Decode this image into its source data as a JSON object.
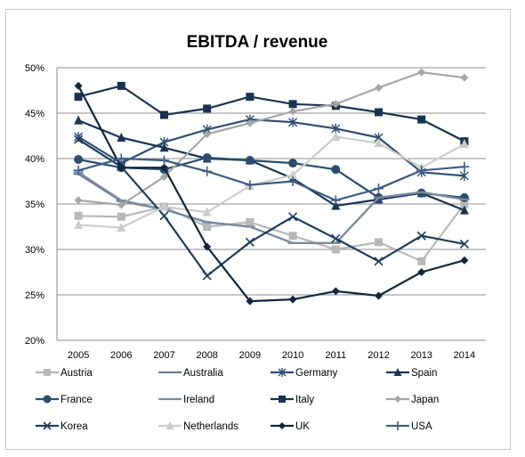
{
  "chart_data": {
    "type": "line",
    "title": "EBITDA / revenue",
    "xlabel": "",
    "ylabel": "",
    "x": [
      "2005",
      "2006",
      "2007",
      "2008",
      "2009",
      "2010",
      "2011",
      "2012",
      "2013",
      "2014"
    ],
    "ylim": [
      0.2,
      0.5
    ],
    "y_ticks": [
      0.2,
      0.25,
      0.3,
      0.35,
      0.4,
      0.45,
      0.5
    ],
    "y_tick_labels": [
      "20%",
      "25%",
      "30%",
      "35%",
      "40%",
      "45%",
      "50%"
    ],
    "grid": "horizontal",
    "legend_position": "bottom",
    "series": [
      {
        "name": "Austria",
        "color": "#b8b8b8",
        "marker": "square",
        "values": [
          0.337,
          0.336,
          0.347,
          0.325,
          0.33,
          0.315,
          0.3,
          0.308,
          0.287,
          0.35
        ]
      },
      {
        "name": "Australia",
        "color": "#6c7e96",
        "marker": "dash",
        "values": [
          0.383,
          0.353,
          0.344,
          0.33,
          0.325,
          0.307,
          0.307,
          0.357,
          0.363,
          0.355
        ]
      },
      {
        "name": "Germany",
        "color": "#2e4e74",
        "marker": "asterisk",
        "values": [
          0.424,
          0.395,
          0.418,
          0.432,
          0.443,
          0.44,
          0.433,
          0.423,
          0.385,
          0.381
        ]
      },
      {
        "name": "Spain",
        "color": "#1c3554",
        "marker": "triangle",
        "values": [
          0.442,
          0.423,
          0.412,
          0.4,
          0.398,
          0.378,
          0.348,
          0.355,
          0.362,
          0.343
        ]
      },
      {
        "name": "France",
        "color": "#2b4d6e",
        "marker": "circle",
        "values": [
          0.399,
          0.39,
          0.388,
          0.401,
          0.398,
          0.395,
          0.388,
          0.357,
          0.362,
          0.357
        ]
      },
      {
        "name": "Ireland",
        "color": "#7a8aa0",
        "marker": "dash",
        "values": [
          0.385,
          0.354,
          0.344,
          0.33,
          0.325,
          0.307,
          0.307,
          0.357,
          0.363,
          0.355
        ]
      },
      {
        "name": "Italy",
        "color": "#1a3352",
        "marker": "square",
        "values": [
          0.468,
          0.48,
          0.448,
          0.455,
          0.468,
          0.46,
          0.458,
          0.451,
          0.443,
          0.419
        ]
      },
      {
        "name": "Japan",
        "color": "#a6a6a6",
        "marker": "diamond",
        "values": [
          0.354,
          0.349,
          0.38,
          0.427,
          0.439,
          0.452,
          0.46,
          0.478,
          0.495,
          0.489
        ]
      },
      {
        "name": "Korea",
        "color": "#1e3a5c",
        "marker": "x",
        "values": [
          0.421,
          0.391,
          0.337,
          0.271,
          0.308,
          0.336,
          0.312,
          0.287,
          0.315,
          0.306
        ]
      },
      {
        "name": "Netherlands",
        "color": "#cccccc",
        "marker": "triangle",
        "values": [
          0.327,
          0.324,
          0.347,
          0.341,
          0.37,
          0.382,
          0.424,
          0.417,
          0.39,
          0.416
        ]
      },
      {
        "name": "UK",
        "color": "#12263e",
        "marker": "diamond",
        "values": [
          0.48,
          0.39,
          0.39,
          0.303,
          0.243,
          0.245,
          0.254,
          0.249,
          0.275,
          0.288
        ]
      },
      {
        "name": "USA",
        "color": "#3e5c80",
        "marker": "plus",
        "values": [
          0.387,
          0.4,
          0.398,
          0.386,
          0.371,
          0.375,
          0.354,
          0.367,
          0.387,
          0.391
        ]
      }
    ]
  }
}
